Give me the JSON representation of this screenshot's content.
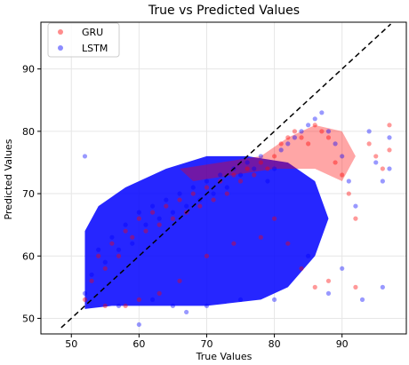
{
  "chart_data": {
    "type": "scatter",
    "title": "True vs Predicted Values",
    "xlabel": "True Values",
    "ylabel": "Predicted Values",
    "xlim": [
      45.5,
      99.5
    ],
    "ylim": [
      47.5,
      97.5
    ],
    "xticks": [
      50,
      60,
      70,
      80,
      90
    ],
    "yticks": [
      50,
      60,
      70,
      80,
      90
    ],
    "grid": true,
    "legend_position": "top-left",
    "reference_line": {
      "style": "dashed",
      "color": "#000000",
      "x": [
        48.5,
        97.2
      ],
      "y": [
        48.5,
        97.2
      ]
    },
    "series": [
      {
        "name": "GRU",
        "color": "#ff0000",
        "alpha": 0.4,
        "points": [
          [
            52,
            53
          ],
          [
            53,
            56
          ],
          [
            54,
            60
          ],
          [
            55,
            58
          ],
          [
            56,
            62
          ],
          [
            57,
            60
          ],
          [
            58,
            64
          ],
          [
            59,
            63
          ],
          [
            60,
            66
          ],
          [
            61,
            64
          ],
          [
            62,
            67
          ],
          [
            63,
            65
          ],
          [
            64,
            68
          ],
          [
            65,
            66
          ],
          [
            66,
            69
          ],
          [
            67,
            67
          ],
          [
            68,
            70
          ],
          [
            69,
            68
          ],
          [
            70,
            71
          ],
          [
            71,
            69
          ],
          [
            72,
            72
          ],
          [
            73,
            70
          ],
          [
            74,
            73
          ],
          [
            75,
            72
          ],
          [
            76,
            74
          ],
          [
            77,
            73
          ],
          [
            78,
            75
          ],
          [
            79,
            74
          ],
          [
            80,
            76
          ],
          [
            81,
            78
          ],
          [
            82,
            79
          ],
          [
            83,
            80
          ],
          [
            84,
            79
          ],
          [
            85,
            78
          ],
          [
            86,
            81
          ],
          [
            87,
            80
          ],
          [
            88,
            79
          ],
          [
            89,
            75
          ],
          [
            90,
            73
          ],
          [
            91,
            70
          ],
          [
            92,
            66
          ],
          [
            94,
            78
          ],
          [
            95,
            76
          ],
          [
            96,
            74
          ],
          [
            97,
            81
          ],
          [
            97,
            77
          ],
          [
            55,
            52
          ],
          [
            58,
            52
          ],
          [
            60,
            53
          ],
          [
            63,
            54
          ],
          [
            66,
            56
          ],
          [
            70,
            60
          ],
          [
            74,
            62
          ],
          [
            78,
            63
          ],
          [
            80,
            66
          ],
          [
            82,
            62
          ],
          [
            84,
            58
          ],
          [
            86,
            55
          ],
          [
            88,
            56
          ],
          [
            92,
            55
          ]
        ]
      },
      {
        "name": "LSTM",
        "color": "#0000ff",
        "alpha": 0.4,
        "points": [
          [
            52,
            54
          ],
          [
            53,
            57
          ],
          [
            54,
            61
          ],
          [
            55,
            59
          ],
          [
            56,
            63
          ],
          [
            57,
            61
          ],
          [
            58,
            65
          ],
          [
            59,
            62
          ],
          [
            60,
            67
          ],
          [
            61,
            65
          ],
          [
            62,
            68
          ],
          [
            63,
            66
          ],
          [
            64,
            69
          ],
          [
            65,
            67
          ],
          [
            66,
            70
          ],
          [
            67,
            68
          ],
          [
            68,
            71
          ],
          [
            69,
            69
          ],
          [
            70,
            72
          ],
          [
            71,
            70
          ],
          [
            72,
            73
          ],
          [
            73,
            71
          ],
          [
            74,
            74
          ],
          [
            75,
            73
          ],
          [
            76,
            75
          ],
          [
            77,
            74
          ],
          [
            78,
            76
          ],
          [
            79,
            72
          ],
          [
            80,
            74
          ],
          [
            81,
            77
          ],
          [
            82,
            78
          ],
          [
            83,
            79
          ],
          [
            84,
            80
          ],
          [
            85,
            81
          ],
          [
            86,
            82
          ],
          [
            87,
            83
          ],
          [
            88,
            80
          ],
          [
            89,
            78
          ],
          [
            90,
            76
          ],
          [
            91,
            72
          ],
          [
            92,
            68
          ],
          [
            94,
            80
          ],
          [
            95,
            75
          ],
          [
            96,
            72
          ],
          [
            97,
            79
          ],
          [
            97,
            74
          ],
          [
            52,
            76
          ],
          [
            60,
            49
          ],
          [
            67,
            51
          ],
          [
            85,
            60
          ],
          [
            88,
            54
          ],
          [
            90,
            58
          ],
          [
            93,
            53
          ],
          [
            96,
            55
          ],
          [
            80,
            53
          ],
          [
            75,
            53
          ],
          [
            70,
            52
          ],
          [
            65,
            52
          ],
          [
            57,
            52
          ],
          [
            62,
            53
          ]
        ]
      }
    ]
  }
}
